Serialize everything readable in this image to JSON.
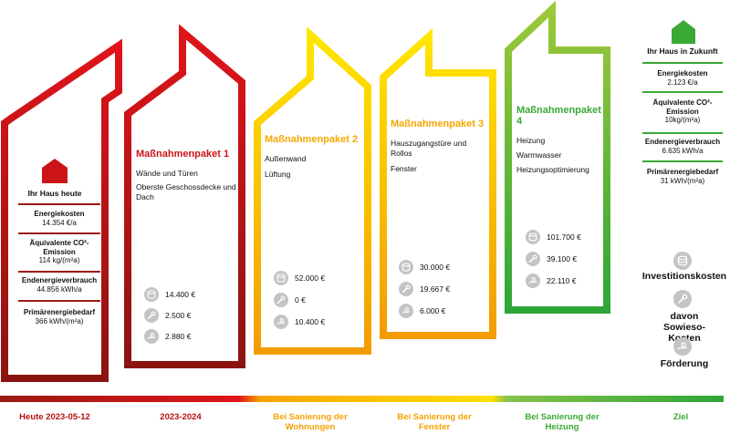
{
  "current_house": {
    "title": "Ihr Haus heute",
    "items": [
      {
        "label": "Energiekosten",
        "value": "14.354 €/a"
      },
      {
        "label": "Äquivalente CO²-Emission",
        "value": "114 kg/(m²a)"
      },
      {
        "label": "Endenergieverbrauch",
        "value": "44.856 kWh/a"
      },
      {
        "label": "Primärenergiebedarf",
        "value": "366 kWh/(m²a)"
      }
    ]
  },
  "packages": [
    {
      "title": "Maßnahmenpaket 1",
      "color": "#cc1418",
      "measures": [
        "Wände und Türen",
        "Oberste Geschossdecke und Dach"
      ],
      "costs": [
        "14.400 €",
        "2.500 €",
        "2.880 €"
      ]
    },
    {
      "title": "Maßnahmenpaket 2",
      "color": "#f5a800",
      "measures": [
        "Außenwand",
        "Lüftung"
      ],
      "costs": [
        "52.000 €",
        "0 €",
        "10.400 €"
      ]
    },
    {
      "title": "Maßnahmenpaket 3",
      "color": "#f5a800",
      "measures": [
        "Hauszugangstüre und Rollos",
        "Fenster"
      ],
      "costs": [
        "30.000 €",
        "19.667 €",
        "6.000 €"
      ]
    },
    {
      "title": "Maßnahmenpaket 4",
      "color": "#3aa935",
      "measures": [
        "Heizung",
        "Warmwasser",
        "Heizungsoptimierung"
      ],
      "costs": [
        "101.700 €",
        "39.100 €",
        "22.110 €"
      ]
    }
  ],
  "future_house": {
    "title": "Ihr Haus in Zukunft",
    "items": [
      {
        "label": "Energiekosten",
        "value": "2.123 €/a"
      },
      {
        "label": "Äquivalente CO²-Emission",
        "value": "10kg/(m²a)"
      },
      {
        "label": "Endenergieverbrauch",
        "value": "6.635 kWh/a"
      },
      {
        "label": "Primärenergiebedarf",
        "value": "31 kWh/(m²a)"
      }
    ]
  },
  "legend": {
    "investment": "Investitionskosten",
    "sowieso": "davon Sowieso-Kosten",
    "foerderung": "Förderung"
  },
  "timeline": [
    {
      "label": "Heute 2023-05-12",
      "color": "#cc1418"
    },
    {
      "label": "2023-2024",
      "color": "#cc1418"
    },
    {
      "label": "Bei Sanierung der Wohnungen",
      "color": "#f5a800"
    },
    {
      "label": "Bei Sanierung der Fenster",
      "color": "#f5a800"
    },
    {
      "label": "Bei Sanierung der Heizung",
      "color": "#3aa935"
    },
    {
      "label": "Ziel",
      "color": "#3aa935"
    }
  ],
  "colors": {
    "red_dark": "#8b1a12",
    "red": "#d41419",
    "orange": "#f39c00",
    "yellow": "#ffe000",
    "green_dark": "#3aa935",
    "green_light": "#8cc63f",
    "icon_gray": "#c4c4c4"
  }
}
